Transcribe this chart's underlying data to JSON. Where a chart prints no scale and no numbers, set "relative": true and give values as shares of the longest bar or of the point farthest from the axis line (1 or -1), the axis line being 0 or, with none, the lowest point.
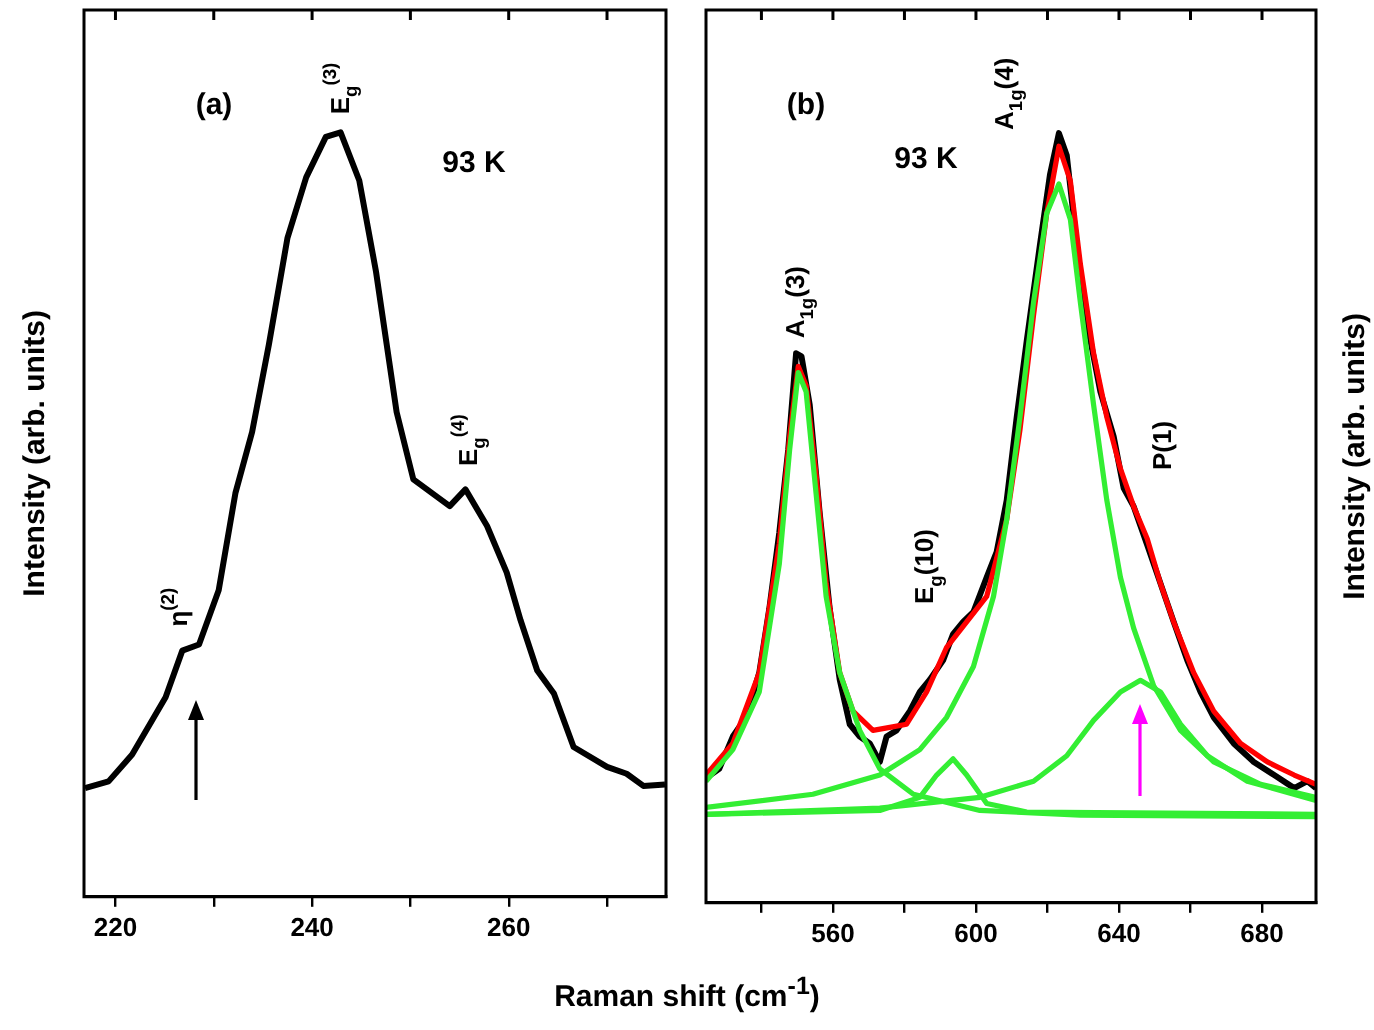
{
  "chart_data": [
    {
      "type": "line",
      "relative": true,
      "marker": "none",
      "xlabel": "Raman shift (cm$^{-1}$)",
      "ylabel": "Intensity (arb. units)",
      "xlim": [
        216.8,
        276
      ],
      "xticks": [
        220,
        {
          "value": 230,
          "label": null
        },
        240,
        {
          "value": 250,
          "label": null
        },
        260,
        {
          "value": 270,
          "label": null
        }
      ],
      "annotations": [
        "(a)",
        "93 K",
        {
          "text": "E$_{g}$$^{(3)}$",
          "x": 243,
          "y": 1
        },
        {
          "text": "E$_{g}$$^{(4)}$",
          "x": 256,
          "y": 0.54
        },
        {
          "text": "η$^{(2)}$",
          "x": 226.5,
          "y": 0.33
        }
      ],
      "series": [
        {
          "color": "#000000",
          "x": [
            216.9,
            219.3,
            221.7,
            225.1,
            226.8,
            228.5,
            230.5,
            232.2,
            233.9,
            235.6,
            237.5,
            239.4,
            241.4,
            242.9,
            244.8,
            246.5,
            248.6,
            250.3,
            254.0,
            255.6,
            257.8,
            259.8,
            261.2,
            262.9,
            264.6,
            266.6,
            270.0,
            272.0,
            273.7,
            275.9
          ],
          "values": [
            0.142,
            0.151,
            0.186,
            0.261,
            0.322,
            0.33,
            0.401,
            0.528,
            0.608,
            0.722,
            0.862,
            0.941,
            0.994,
            1,
            0.937,
            0.818,
            0.634,
            0.546,
            0.511,
            0.533,
            0.485,
            0.424,
            0.362,
            0.296,
            0.266,
            0.196,
            0.17,
            0.161,
            0.145,
            0.147
          ]
        }
      ]
    },
    {
      "type": "line",
      "relative": true,
      "marker": "none",
      "ylabel": "Intensity (arb. units)",
      "xlim": [
        524.5,
        695.1
      ],
      "xticks": [
        {
          "value": 540,
          "label": null
        },
        560,
        {
          "value": 580,
          "label": null
        },
        600,
        {
          "value": 620,
          "label": null
        },
        640,
        {
          "value": 660,
          "label": null
        },
        680
      ],
      "annotations": [
        "(b)",
        "93 K",
        {
          "text": "A$_{1g}$(3)",
          "x": 550,
          "y": 0.71
        },
        "E$_{g}$(10)",
        "A$_{1g}$(4)",
        "P(1)"
      ],
      "series": [
        {
          "color": "#000000",
          "x": [
            524.5,
            528.2,
            532.0,
            535.7,
            539.4,
            542.2,
            545.0,
            547.5,
            549.7,
            551.2,
            553.5,
            556.3,
            559.1,
            561.9,
            564.7,
            567.5,
            570.3,
            573.1,
            575.0,
            577.8,
            581.5,
            584.3,
            587.1,
            590.8,
            593.6,
            596.4,
            599.3,
            603.0,
            605.8,
            608.6,
            611.4,
            614.2,
            617.9,
            620.7,
            623.2,
            625.4,
            628.2,
            631.0,
            634.8,
            638.5,
            641.3,
            644.1,
            647.9,
            651.6,
            655.3,
            659.1,
            662.8,
            666.5,
            672.1,
            677.7,
            683.4,
            689.0,
            692.7,
            695.1
          ],
          "values": [
            0.162,
            0.174,
            0.216,
            0.241,
            0.299,
            0.382,
            0.481,
            0.589,
            0.714,
            0.71,
            0.647,
            0.506,
            0.382,
            0.29,
            0.232,
            0.216,
            0.207,
            0.183,
            0.216,
            0.224,
            0.249,
            0.274,
            0.29,
            0.315,
            0.349,
            0.365,
            0.378,
            0.423,
            0.456,
            0.523,
            0.631,
            0.73,
            0.855,
            0.946,
            1,
            0.971,
            0.855,
            0.755,
            0.664,
            0.606,
            0.539,
            0.515,
            0.465,
            0.415,
            0.365,
            0.315,
            0.274,
            0.241,
            0.207,
            0.183,
            0.166,
            0.149,
            0.158,
            0.149
          ]
        },
        {
          "color": "#ff0000",
          "x": [
            524.5,
            532.0,
            539.4,
            545.0,
            547.9,
            550.3,
            552.5,
            555.3,
            558.1,
            561.9,
            565.6,
            571.2,
            575.9,
            580.6,
            586.2,
            591.8,
            597.4,
            603.0,
            608.6,
            612.3,
            616.1,
            619.8,
            623.2,
            626.4,
            629.2,
            632.9,
            636.6,
            640.4,
            644.1,
            647.9,
            651.6,
            655.3,
            660.9,
            666.5,
            674.0,
            681.5,
            689.0,
            695.1
          ],
          "values": [
            0.166,
            0.207,
            0.299,
            0.467,
            0.606,
            0.697,
            0.672,
            0.556,
            0.415,
            0.299,
            0.249,
            0.224,
            0.228,
            0.232,
            0.274,
            0.332,
            0.365,
            0.398,
            0.498,
            0.614,
            0.763,
            0.896,
            0.983,
            0.938,
            0.83,
            0.714,
            0.631,
            0.564,
            0.515,
            0.473,
            0.415,
            0.365,
            0.299,
            0.249,
            0.207,
            0.183,
            0.166,
            0.154
          ]
        },
        {
          "color": "#33ee33",
          "x": [
            524.5,
            532.0,
            539.4,
            545.0,
            547.9,
            550.3,
            552.5,
            555.3,
            558.1,
            561.9,
            567.5,
            573.1,
            582.5,
            601.1,
            629.2,
            695.1
          ],
          "values": [
            0.158,
            0.199,
            0.274,
            0.44,
            0.589,
            0.689,
            0.664,
            0.531,
            0.398,
            0.299,
            0.224,
            0.174,
            0.141,
            0.12,
            0.114,
            0.112
          ]
        },
        {
          "color": "#33ee33",
          "x": [
            524.5,
            573.1,
            584.3,
            589.0,
            593.6,
            597.4,
            603.0,
            614.2,
            695.1
          ],
          "values": [
            0.115,
            0.12,
            0.137,
            0.166,
            0.187,
            0.166,
            0.129,
            0.118,
            0.115
          ]
        },
        {
          "color": "#33ee33",
          "x": [
            524.5,
            554.4,
            573.1,
            584.3,
            591.8,
            599.3,
            604.9,
            608.6,
            612.3,
            616.1,
            619.8,
            623.2,
            626.4,
            629.2,
            632.9,
            636.6,
            640.4,
            644.1,
            649.7,
            657.2,
            666.5,
            679.6,
            695.1
          ],
          "values": [
            0.124,
            0.141,
            0.166,
            0.199,
            0.241,
            0.307,
            0.398,
            0.498,
            0.631,
            0.78,
            0.896,
            0.934,
            0.888,
            0.78,
            0.647,
            0.523,
            0.423,
            0.357,
            0.282,
            0.224,
            0.183,
            0.154,
            0.137
          ]
        },
        {
          "color": "#33ee33",
          "x": [
            524.5,
            573.1,
            601.1,
            616.1,
            625.4,
            632.9,
            640.4,
            646.0,
            651.6,
            657.2,
            664.7,
            675.9,
            695.1
          ],
          "values": [
            0.115,
            0.123,
            0.137,
            0.158,
            0.191,
            0.237,
            0.274,
            0.289,
            0.274,
            0.232,
            0.191,
            0.158,
            0.133
          ]
        }
      ]
    }
  ]
}
